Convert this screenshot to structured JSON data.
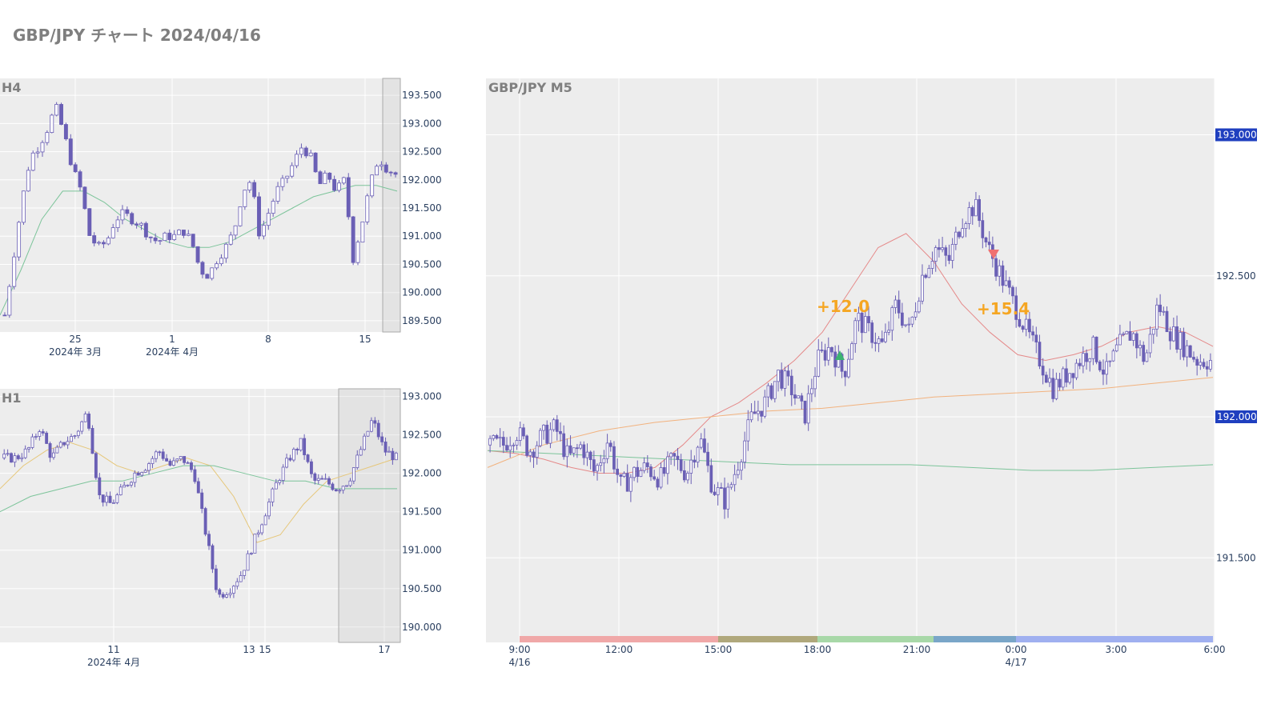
{
  "page": {
    "title": "GBP/JPY チャート 2024/04/16"
  },
  "colors": {
    "plot_bg": "#ededed",
    "grid": "#ffffff",
    "candle": "#6a5fb5",
    "ma_green": "#7cc49a",
    "ma_yellow": "#e6c77a",
    "ma_red": "#e58a8a",
    "ma_orange": "#f2b27e",
    "price_tag_bg": "#1f3fbf",
    "pnl_text": "#f5a623",
    "buy_marker": "#3cb371",
    "sell_marker": "#f07070"
  },
  "chart_data": [
    {
      "type": "candlestick",
      "label": "H4",
      "ylim": [
        189.3,
        193.8
      ],
      "y_ticks": [
        "193.500",
        "193.000",
        "192.500",
        "192.000",
        "191.500",
        "191.000",
        "190.500",
        "190.000",
        "189.500"
      ],
      "x_tick_labels": [
        {
          "label": "25",
          "sublabel": "2024年 3月"
        },
        {
          "label": "1",
          "sublabel": "2024年 4月"
        },
        {
          "label": "8",
          "sublabel": ""
        },
        {
          "label": "15",
          "sublabel": ""
        }
      ],
      "series": [
        {
          "role": "price",
          "kind": "candles",
          "close_path": [
            189.6,
            190.6,
            191.6,
            192.4,
            192.6,
            192.9,
            193.3,
            192.8,
            192.2,
            191.8,
            191.0,
            190.8,
            190.9,
            191.3,
            191.4,
            191.3,
            191.2,
            191.0,
            190.9,
            191.0,
            191.0,
            191.1,
            190.9,
            190.4,
            190.3,
            190.6,
            190.8,
            191.1,
            191.8,
            192.0,
            191.0,
            191.4,
            191.8,
            192.0,
            192.3,
            192.6,
            192.4,
            191.9,
            192.1,
            191.8,
            192.0,
            190.6,
            191.2,
            191.9,
            192.4,
            192.2,
            192.1
          ],
          "candle_count": 84
        },
        {
          "role": "moving-average",
          "color_key": "ma_green",
          "values": [
            189.6,
            190.4,
            191.3,
            191.8,
            191.8,
            191.6,
            191.3,
            191.1,
            190.9,
            190.8,
            190.8,
            190.9,
            191.1,
            191.3,
            191.5,
            191.7,
            191.8,
            191.9,
            191.9,
            191.8
          ]
        }
      ]
    },
    {
      "type": "candlestick",
      "label": "H1",
      "ylim": [
        189.8,
        193.1
      ],
      "y_ticks": [
        "193.000",
        "192.500",
        "192.000",
        "191.500",
        "191.000",
        "190.500",
        "190.000"
      ],
      "x_tick_labels": [
        {
          "label": "11",
          "sublabel": "2024年 4月"
        },
        {
          "label": "13",
          "sublabel": ""
        },
        {
          "label": "15",
          "sublabel": ""
        },
        {
          "label": "17",
          "sublabel": ""
        }
      ],
      "series": [
        {
          "role": "price",
          "kind": "candles",
          "close_path": [
            192.2,
            192.2,
            192.3,
            192.6,
            192.2,
            192.4,
            192.5,
            192.8,
            191.7,
            191.6,
            191.8,
            192.0,
            192.1,
            192.3,
            192.1,
            192.2,
            192.0,
            191.2,
            190.4,
            190.5,
            190.7,
            191.1,
            191.5,
            191.9,
            192.2,
            192.4,
            191.9,
            191.9,
            191.8,
            191.9,
            192.3,
            192.7,
            192.3,
            192.2
          ],
          "candle_count": 112
        },
        {
          "role": "moving-average",
          "color_key": "ma_yellow",
          "values": [
            191.8,
            192.1,
            192.3,
            192.4,
            192.3,
            192.1,
            192.0,
            192.1,
            192.2,
            192.1,
            191.7,
            191.1,
            191.2,
            191.6,
            191.9,
            192.0,
            192.1,
            192.2
          ]
        },
        {
          "role": "moving-average",
          "color_key": "ma_green",
          "values": [
            191.5,
            191.7,
            191.8,
            191.9,
            191.9,
            192.0,
            192.1,
            192.1,
            192.0,
            191.9,
            191.9,
            191.8,
            191.8,
            191.8
          ]
        }
      ]
    },
    {
      "type": "candlestick",
      "label": "GBP/JPY M5",
      "ylim": [
        191.2,
        193.2
      ],
      "y_ticks": [
        "192.500",
        "191.500"
      ],
      "price_tags": [
        "193.000",
        "192.000"
      ],
      "x_tick_labels": [
        {
          "label": "9:00",
          "sublabel": "4/16"
        },
        {
          "label": "12:00",
          "sublabel": ""
        },
        {
          "label": "15:00",
          "sublabel": ""
        },
        {
          "label": "18:00",
          "sublabel": ""
        },
        {
          "label": "21:00",
          "sublabel": ""
        },
        {
          "label": "0:00",
          "sublabel": "4/17"
        },
        {
          "label": "3:00",
          "sublabel": ""
        },
        {
          "label": "6:00",
          "sublabel": ""
        }
      ],
      "trades": [
        {
          "side": "buy",
          "pnl": "+12.0"
        },
        {
          "side": "sell",
          "pnl": "+15.4"
        }
      ],
      "series": [
        {
          "role": "price",
          "kind": "candles",
          "close_path": [
            191.9,
            191.9,
            191.95,
            191.88,
            191.93,
            191.96,
            191.85,
            191.9,
            191.8,
            191.92,
            191.75,
            191.8,
            191.82,
            191.78,
            191.85,
            191.8,
            191.93,
            191.75,
            191.7,
            191.85,
            192.0,
            192.05,
            192.15,
            192.1,
            192.0,
            192.2,
            192.25,
            192.15,
            192.35,
            192.3,
            192.25,
            192.4,
            192.3,
            192.5,
            192.6,
            192.55,
            192.7,
            192.75,
            192.6,
            192.5,
            192.4,
            192.3,
            192.2,
            192.1,
            192.15,
            192.2,
            192.25,
            192.15,
            192.25,
            192.3,
            192.2,
            192.4,
            192.3,
            192.25,
            192.2,
            192.2
          ],
          "candle_count": 216
        },
        {
          "role": "moving-average",
          "color_key": "ma_red",
          "values": [
            191.88,
            191.87,
            191.85,
            191.82,
            191.8,
            191.8,
            191.82,
            191.9,
            192.0,
            192.05,
            192.12,
            192.2,
            192.3,
            192.45,
            192.6,
            192.65,
            192.55,
            192.4,
            192.3,
            192.22,
            192.2,
            192.22,
            192.25,
            192.3,
            192.32,
            192.3,
            192.25
          ]
        },
        {
          "role": "moving-average",
          "color_key": "ma_orange",
          "values": [
            191.82,
            191.9,
            191.95,
            191.98,
            192.0,
            192.02,
            192.03,
            192.05,
            192.07,
            192.08,
            192.09,
            192.1,
            192.12,
            192.14
          ]
        },
        {
          "role": "moving-average",
          "color_key": "ma_green",
          "values": [
            191.88,
            191.87,
            191.86,
            191.85,
            191.84,
            191.83,
            191.83,
            191.83,
            191.82,
            191.81,
            191.81,
            191.82,
            191.83
          ]
        }
      ],
      "session_bar": [
        {
          "color": "#f0a8a8"
        },
        {
          "color": "#b0a87c"
        },
        {
          "color": "#a8d8a8"
        },
        {
          "color": "#7aa6c8"
        },
        {
          "color": "#a0b0f0"
        }
      ]
    }
  ]
}
